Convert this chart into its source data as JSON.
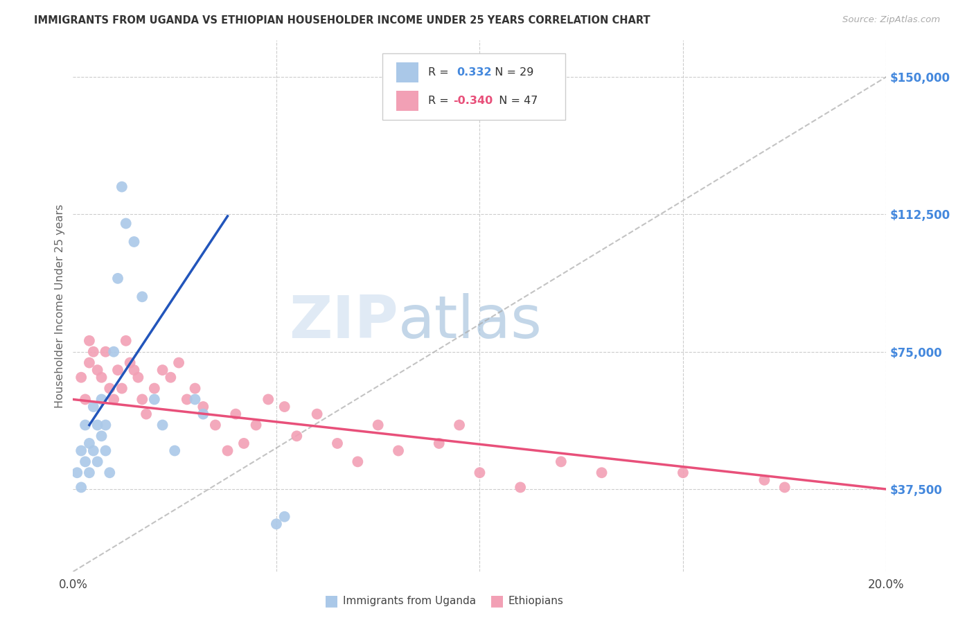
{
  "title": "IMMIGRANTS FROM UGANDA VS ETHIOPIAN HOUSEHOLDER INCOME UNDER 25 YEARS CORRELATION CHART",
  "source": "Source: ZipAtlas.com",
  "ylabel": "Householder Income Under 25 years",
  "xlim": [
    0.0,
    0.2
  ],
  "ylim": [
    15000,
    160000
  ],
  "ytick_positions": [
    37500,
    75000,
    112500,
    150000
  ],
  "ytick_labels": [
    "$37,500",
    "$75,000",
    "$112,500",
    "$150,000"
  ],
  "legend_r_uganda": "0.332",
  "legend_n_uganda": "29",
  "legend_r_ethiopian": "-0.340",
  "legend_n_ethiopian": "47",
  "uganda_color": "#aac8e8",
  "uganda_line_color": "#2255bb",
  "ethiopian_color": "#f2a0b5",
  "ethiopian_line_color": "#e8507a",
  "background_color": "#ffffff",
  "grid_color": "#cccccc",
  "ytick_color": "#4488dd",
  "title_color": "#333333",
  "label_color": "#666666",
  "uganda_x": [
    0.001,
    0.002,
    0.002,
    0.003,
    0.003,
    0.004,
    0.004,
    0.005,
    0.005,
    0.006,
    0.006,
    0.007,
    0.007,
    0.008,
    0.008,
    0.009,
    0.01,
    0.011,
    0.012,
    0.013,
    0.015,
    0.017,
    0.02,
    0.022,
    0.025,
    0.03,
    0.032,
    0.05,
    0.052
  ],
  "uganda_y": [
    42000,
    48000,
    38000,
    55000,
    45000,
    50000,
    42000,
    60000,
    48000,
    55000,
    45000,
    52000,
    62000,
    48000,
    55000,
    42000,
    75000,
    95000,
    120000,
    110000,
    105000,
    90000,
    62000,
    55000,
    48000,
    62000,
    58000,
    28000,
    30000
  ],
  "ethiopian_x": [
    0.002,
    0.003,
    0.004,
    0.004,
    0.005,
    0.006,
    0.007,
    0.008,
    0.009,
    0.01,
    0.011,
    0.012,
    0.013,
    0.014,
    0.015,
    0.016,
    0.017,
    0.018,
    0.02,
    0.022,
    0.024,
    0.026,
    0.028,
    0.03,
    0.032,
    0.035,
    0.038,
    0.04,
    0.042,
    0.045,
    0.048,
    0.052,
    0.055,
    0.06,
    0.065,
    0.07,
    0.075,
    0.08,
    0.09,
    0.095,
    0.1,
    0.11,
    0.12,
    0.13,
    0.15,
    0.17,
    0.175
  ],
  "ethiopian_y": [
    68000,
    62000,
    72000,
    78000,
    75000,
    70000,
    68000,
    75000,
    65000,
    62000,
    70000,
    65000,
    78000,
    72000,
    70000,
    68000,
    62000,
    58000,
    65000,
    70000,
    68000,
    72000,
    62000,
    65000,
    60000,
    55000,
    48000,
    58000,
    50000,
    55000,
    62000,
    60000,
    52000,
    58000,
    50000,
    45000,
    55000,
    48000,
    50000,
    55000,
    42000,
    38000,
    45000,
    42000,
    42000,
    40000,
    38000
  ],
  "uganda_line_x": [
    0.004,
    0.038
  ],
  "uganda_line_y": [
    55000,
    112000
  ],
  "ethiopian_line_x": [
    0.0,
    0.2
  ],
  "ethiopian_line_y": [
    62000,
    37500
  ]
}
